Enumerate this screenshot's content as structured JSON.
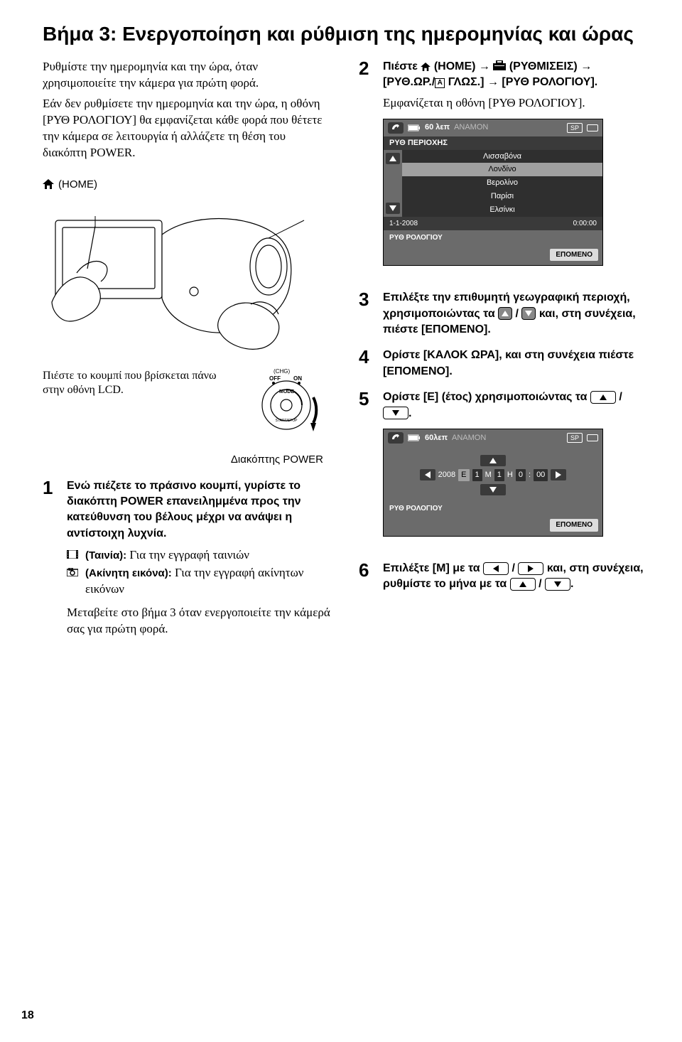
{
  "title": "Βήμα 3: Ενεργοποίηση και ρύθμιση της ημερομηνίας και ώρας",
  "intro1": "Ρυθμίστε την ημερομηνία και την ώρα, όταν χρησιμοποιείτε την κάμερα για πρώτη φορά.",
  "intro2": "Εάν δεν ρυθμίσετε την ημερομηνία και την ώρα, η οθόνη [ΡΥΘ ΡΟΛΟΓΙΟΥ] θα εμφανίζεται κάθε φορά που θέτετε την κάμερα σε λειτουργία ή αλλάζετε τη θέση του διακόπτη POWER.",
  "homeLabel": "(HOME)",
  "lcdCaption": "Πιέστε το κουμπί που βρίσκεται πάνω στην οθόνη LCD.",
  "powerCaption": "Διακόπτης POWER",
  "modeLabels": {
    "chg": "(CHG)",
    "off": "OFF",
    "on": "ON",
    "mode": "MODE",
    "start": "START/STOP"
  },
  "steps": {
    "s1": {
      "num": "1",
      "bold": "Ενώ πιέζετε το πράσινο κουμπί, γυρίστε το διακόπτη POWER επανειλημμένα προς την κατεύθυνση του βέλους μέχρι να ανάψει η αντίστοιχη λυχνία.",
      "film_label": "(Ταινία):",
      "film_rest": "Για την εγγραφή ταινιών",
      "still_label": "(Ακίνητη εικόνα):",
      "still_rest": "Για την εγγραφή ακίνητων εικόνων",
      "note": "Μεταβείτε στο βήμα 3 όταν ενεργοποιείτε την κάμερά σας για πρώτη φορά."
    },
    "s2": {
      "num": "2",
      "pre": "Πιέστε",
      "home": "(HOME)",
      "settings": "(ΡΥΘΜΙΣΕΙΣ)",
      "clocklang": "[ΡΥΘ.ΩΡ./",
      "langA": "A",
      "lang2": "ΓΛΩΣ.]",
      "clock": "[ΡΥΘ ΡΟΛΟΓΙΟΥ].",
      "appears": "Εμφανίζεται η οθόνη [ΡΥΘ ΡΟΛΟΓΙΟΥ]."
    },
    "s3": {
      "num": "3",
      "bold_a": "Επιλέξτε την επιθυμητή γεωγραφική περιοχή, χρησιμοποιώντας τα",
      "bold_b": "και, στη συνέχεια, πιέστε [ΕΠΟΜΕΝΟ]."
    },
    "s4": {
      "num": "4",
      "bold": "Ορίστε [ΚΑΛΟΚ ΩΡΑ], και στη συνέχεια πιέστε [ΕΠΟΜΕΝΟ]."
    },
    "s5": {
      "num": "5",
      "bold_a": "Ορίστε [Ε] (έτος) χρησιμοποιώντας τα",
      "bold_b": "."
    },
    "s6": {
      "num": "6",
      "bold_a": "Επιλέξτε [Μ] με τα",
      "bold_b": "και, στη συνέχεια, ρυθμίστε το μήνα με τα",
      "bold_c": "."
    }
  },
  "shot1": {
    "bat": "60 λεπ",
    "standby": "ANAMON",
    "sp": "SP",
    "hdr": "ΡΥΘ ΠΕΡΙΟΧΗΣ",
    "items": [
      "Λισσαβόνα",
      "Λονδίνο",
      "Βερολίνο",
      "Παρίσι",
      "Ελσίνκι"
    ],
    "sel_index": 1,
    "date": "1-1-2008",
    "time": "0:00:00",
    "label2": "ΡΥΘ ΡΟΛΟΓΙΟΥ",
    "next": "ΕΠΟΜΕΝΟ"
  },
  "shot2": {
    "bat": "60λεπ",
    "standby": "ANAMON",
    "sp": "SP",
    "year": "2008",
    "E": "E",
    "M": "M",
    "H": "H",
    "v1": "1",
    "v2": "1",
    "v3": "0",
    "v4": "00",
    "label2": "ΡΥΘ ΡΟΛΟΓΙΟΥ",
    "next": "ΕΠΟΜΕΝΟ"
  },
  "pageNum": "18",
  "colors": {
    "shot_bg": "#6b6b6b",
    "shot_dark": "#3a3a3a",
    "shot_list": "#2f2f2f",
    "shot_sel": "#a0a0a0",
    "shot_next": "#dcdcdc"
  }
}
